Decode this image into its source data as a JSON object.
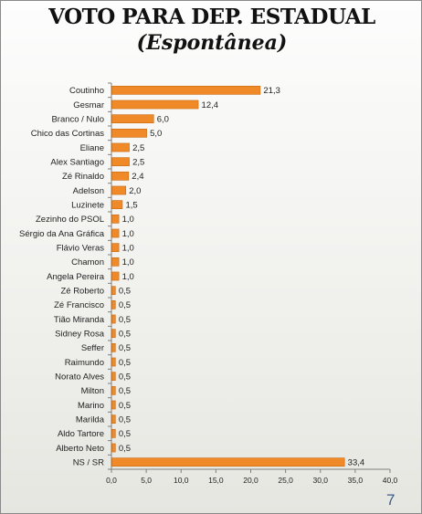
{
  "title": "VOTO  PARA DEP. ESTADUAL",
  "subtitle": "(Espontânea)",
  "page_number": "7",
  "colors": {
    "bar": "#f08a28",
    "bar_edge": "#c96a12",
    "axis": "#7f7f7f"
  },
  "chart_data": {
    "type": "bar",
    "orientation": "horizontal",
    "categories": [
      "Coutinho",
      "Gesmar",
      "Branco / Nulo",
      "Chico das Cortinas",
      "Eliane",
      "Alex Santiago",
      "Zé Rinaldo",
      "Adelson",
      "Luzinete",
      "Zezinho do PSOL",
      "Sérgio da Ana Gráfica",
      "Flávio Veras",
      "Chamon",
      "Angela Pereira",
      "Zé Roberto",
      "Zé Francisco",
      "Tião Miranda",
      "Sidney Rosa",
      "Seffer",
      "Raimundo",
      "Norato Alves",
      "Milton",
      "Marino",
      "Marilda",
      "Aldo Tartore",
      "Alberto Neto",
      "NS / SR"
    ],
    "values": [
      21.3,
      12.4,
      6.0,
      5.0,
      2.5,
      2.5,
      2.4,
      2.0,
      1.5,
      1.0,
      1.0,
      1.0,
      1.0,
      1.0,
      0.5,
      0.5,
      0.5,
      0.5,
      0.5,
      0.5,
      0.5,
      0.5,
      0.5,
      0.5,
      0.5,
      0.5,
      33.4
    ],
    "value_labels": [
      "21,3",
      "12,4",
      "6,0",
      "5,0",
      "2,5",
      "2,5",
      "2,4",
      "2,0",
      "1,5",
      "1,0",
      "1,0",
      "1,0",
      "1,0",
      "1,0",
      "0,5",
      "0,5",
      "0,5",
      "0,5",
      "0,5",
      "0,5",
      "0,5",
      "0,5",
      "0,5",
      "0,5",
      "0,5",
      "0,5",
      "33,4"
    ],
    "xlim": [
      0,
      40
    ],
    "x_ticks": [
      0,
      5,
      10,
      15,
      20,
      25,
      30,
      35,
      40
    ],
    "x_tick_labels": [
      "0,0",
      "5,0",
      "10,0",
      "15,0",
      "20,0",
      "25,0",
      "30,0",
      "35,0",
      "40,0"
    ],
    "grid": false,
    "legend": "none"
  }
}
